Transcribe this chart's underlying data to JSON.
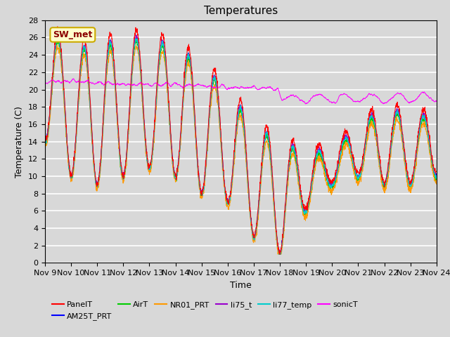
{
  "title": "Temperatures",
  "xlabel": "Time",
  "ylabel": "Temperature (C)",
  "ylim": [
    0,
    28
  ],
  "yticks": [
    0,
    2,
    4,
    6,
    8,
    10,
    12,
    14,
    16,
    18,
    20,
    22,
    24,
    26,
    28
  ],
  "xtick_labels": [
    "Nov 9",
    "Nov 10",
    "Nov 11",
    "Nov 12",
    "Nov 13",
    "Nov 14",
    "Nov 15",
    "Nov 16",
    "Nov 17",
    "Nov 18",
    "Nov 19",
    "Nov 20",
    "Nov 21",
    "Nov 22",
    "Nov 23",
    "Nov 24"
  ],
  "annotation_text": "SW_met",
  "bg_color": "#d8d8d8",
  "plot_bg_color": "#d8d8d8",
  "series_colors": {
    "PanelT": "#ff0000",
    "AM25T_PRT": "#0000ff",
    "AirT": "#00cc00",
    "NR01_PRT": "#ff9900",
    "li75_t": "#9900cc",
    "li77_temp": "#00cccc",
    "sonicT": "#ff00ff"
  },
  "n_points": 2000
}
